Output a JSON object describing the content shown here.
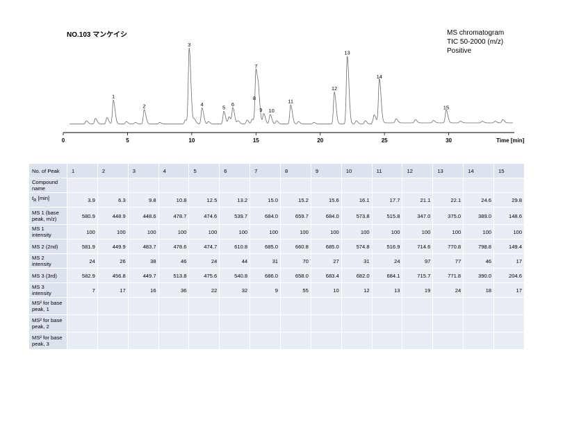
{
  "title": "NO.103 マンケイシ",
  "meta": {
    "line1": "MS chromatogram",
    "line2": "TIC 50-2000 (m/z)",
    "line3": "Positive"
  },
  "chart_data": {
    "type": "line",
    "xlabel": "Time [min]",
    "xlim": [
      0,
      35
    ],
    "x_ticks": [
      "0",
      "5",
      "10",
      "15",
      "20",
      "25",
      "30"
    ],
    "y_axis_shown": false,
    "grid": false,
    "peaks": [
      {
        "label": "1",
        "rt": 3.9,
        "height": 0.3
      },
      {
        "label": "2",
        "rt": 6.3,
        "height": 0.18
      },
      {
        "label": "3",
        "rt": 9.8,
        "height": 0.95
      },
      {
        "label": "4",
        "rt": 10.8,
        "height": 0.2
      },
      {
        "label": "5",
        "rt": 12.5,
        "height": 0.16
      },
      {
        "label": "6",
        "rt": 13.2,
        "height": 0.2
      },
      {
        "label": "7",
        "rt": 15.0,
        "height": 0.68
      },
      {
        "label": "8",
        "rt": 15.2,
        "height": 0.28
      },
      {
        "label": "9",
        "rt": 15.6,
        "height": 0.13
      },
      {
        "label": "10",
        "rt": 16.1,
        "height": 0.12
      },
      {
        "label": "11",
        "rt": 17.7,
        "height": 0.24
      },
      {
        "label": "12",
        "rt": 21.1,
        "height": 0.4
      },
      {
        "label": "13",
        "rt": 22.1,
        "height": 0.85
      },
      {
        "label": "14",
        "rt": 24.6,
        "height": 0.55
      },
      {
        "label": "15",
        "rt": 29.8,
        "height": 0.16
      }
    ]
  },
  "table": {
    "header_label": "No. of Peak",
    "peak_numbers": [
      "1",
      "2",
      "3",
      "4",
      "5",
      "6",
      "7",
      "8",
      "9",
      "10",
      "11",
      "12",
      "13",
      "14",
      "15"
    ],
    "rows": [
      {
        "label": "Compound name",
        "values": [
          "",
          "",
          "",
          "",
          "",
          "",
          "",
          "",
          "",
          "",
          "",
          "",
          "",
          "",
          ""
        ]
      },
      {
        "label": "tR [min]",
        "values": [
          "3.9",
          "6.3",
          "9.8",
          "10.8",
          "12.5",
          "13.2",
          "15.0",
          "15.2",
          "15.6",
          "16.1",
          "17.7",
          "21.1",
          "22.1",
          "24.6",
          "29.8"
        ]
      },
      {
        "label": "MS 1 (base peak, m/z)",
        "values": [
          "580.9",
          "448.9",
          "448.6",
          "478.7",
          "474.6",
          "539.7",
          "684.0",
          "659.7",
          "684.0",
          "573.8",
          "515.8",
          "347.0",
          "375.0",
          "389.0",
          "148.6"
        ]
      },
      {
        "label": "MS 1 intensity",
        "values": [
          "100",
          "100",
          "100",
          "100",
          "100",
          "100",
          "100",
          "100",
          "100",
          "100",
          "100",
          "100",
          "100",
          "100",
          "100"
        ]
      },
      {
        "label": "MS 2 (2nd)",
        "values": [
          "581.9",
          "449.9",
          "483.7",
          "478.6",
          "474.7",
          "610.8",
          "685.0",
          "660.8",
          "685.0",
          "574.8",
          "516.9",
          "714.6",
          "770.8",
          "798.8",
          "149.4"
        ]
      },
      {
        "label": "MS 2 intensity",
        "values": [
          "24",
          "26",
          "38",
          "46",
          "24",
          "44",
          "31",
          "70",
          "27",
          "31",
          "24",
          "97",
          "77",
          "46",
          "17"
        ]
      },
      {
        "label": "MS 3 (3rd)",
        "values": [
          "582.9",
          "456.8",
          "449.7",
          "513.8",
          "475.6",
          "540.8",
          "686.0",
          "658.0",
          "683.4",
          "682.0",
          "684.1",
          "715.7",
          "771.8",
          "390.0",
          "204.6"
        ]
      },
      {
        "label": "MS 3 intensity",
        "values": [
          "7",
          "17",
          "16",
          "36",
          "22",
          "32",
          "9",
          "55",
          "10",
          "12",
          "13",
          "19",
          "24",
          "18",
          "17"
        ]
      },
      {
        "label": "MS² for base peak, 1",
        "values": [
          "",
          "",
          "",
          "",
          "",
          "",
          "",
          "",
          "",
          "",
          "",
          "",
          "",
          "",
          ""
        ]
      },
      {
        "label": "MS² for base peak, 2",
        "values": [
          "",
          "",
          "",
          "",
          "",
          "",
          "",
          "",
          "",
          "",
          "",
          "",
          "",
          "",
          ""
        ]
      },
      {
        "label": "MS² for base peak, 3",
        "values": [
          "",
          "",
          "",
          "",
          "",
          "",
          "",
          "",
          "",
          "",
          "",
          "",
          "",
          "",
          ""
        ]
      }
    ]
  }
}
